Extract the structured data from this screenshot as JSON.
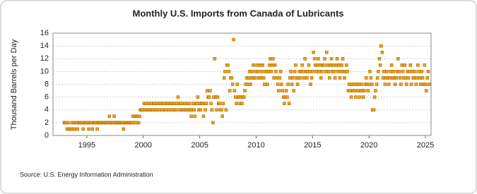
{
  "chart_data": {
    "type": "scatter",
    "title": "Monthly U.S. Imports from Canada of Lubricants",
    "y_label": "Thousand Barrels per Day",
    "source": "Source: U.S. Energy Information Administration",
    "color": "#e8a317",
    "grid": true,
    "xlim": [
      1992,
      2025.5
    ],
    "xticks": [
      1995,
      2000,
      2005,
      2010,
      2015,
      2020,
      2025
    ],
    "ylim": [
      0,
      16
    ],
    "yticks": [
      0,
      2,
      4,
      6,
      8,
      10,
      12,
      14,
      16
    ],
    "x": [
      1993,
      1993.08,
      1993.17,
      1993.25,
      1993.33,
      1993.42,
      1993.5,
      1993.58,
      1993.67,
      1993.75,
      1993.83,
      1993.92,
      1994,
      1994.08,
      1994.17,
      1994.25,
      1994.33,
      1994.42,
      1994.5,
      1994.58,
      1994.67,
      1994.75,
      1994.83,
      1994.92,
      1995,
      1995.08,
      1995.17,
      1995.25,
      1995.33,
      1995.42,
      1995.5,
      1995.58,
      1995.67,
      1995.75,
      1995.83,
      1995.92,
      1996,
      1996.08,
      1996.17,
      1996.25,
      1996.33,
      1996.42,
      1996.5,
      1996.58,
      1996.67,
      1996.75,
      1996.83,
      1996.92,
      1997,
      1997.08,
      1997.17,
      1997.25,
      1997.33,
      1997.42,
      1997.5,
      1997.58,
      1997.67,
      1997.75,
      1997.83,
      1997.92,
      1998,
      1998.08,
      1998.17,
      1998.25,
      1998.33,
      1998.42,
      1998.5,
      1998.58,
      1998.67,
      1998.75,
      1998.83,
      1998.92,
      1999,
      1999.08,
      1999.17,
      1999.25,
      1999.33,
      1999.42,
      1999.5,
      1999.58,
      1999.67,
      1999.75,
      1999.83,
      1999.92,
      2000,
      2000.08,
      2000.17,
      2000.25,
      2000.33,
      2000.42,
      2000.5,
      2000.58,
      2000.67,
      2000.75,
      2000.83,
      2000.92,
      2001,
      2001.08,
      2001.17,
      2001.25,
      2001.33,
      2001.42,
      2001.5,
      2001.58,
      2001.67,
      2001.75,
      2001.83,
      2001.92,
      2002,
      2002.08,
      2002.17,
      2002.25,
      2002.33,
      2002.42,
      2002.5,
      2002.58,
      2002.67,
      2002.75,
      2002.83,
      2002.92,
      2003,
      2003.08,
      2003.17,
      2003.25,
      2003.33,
      2003.42,
      2003.5,
      2003.58,
      2003.67,
      2003.75,
      2003.83,
      2003.92,
      2004,
      2004.08,
      2004.17,
      2004.25,
      2004.33,
      2004.42,
      2004.5,
      2004.58,
      2004.67,
      2004.75,
      2004.83,
      2004.92,
      2005,
      2005.08,
      2005.17,
      2005.25,
      2005.33,
      2005.42,
      2005.5,
      2005.58,
      2005.67,
      2005.75,
      2005.83,
      2005.92,
      2006,
      2006.08,
      2006.17,
      2006.25,
      2006.33,
      2006.42,
      2006.5,
      2006.58,
      2006.67,
      2006.75,
      2006.83,
      2006.92,
      2007,
      2007.08,
      2007.17,
      2007.25,
      2007.33,
      2007.42,
      2007.5,
      2007.58,
      2007.67,
      2007.75,
      2007.83,
      2007.92,
      2008,
      2008.08,
      2008.17,
      2008.25,
      2008.33,
      2008.42,
      2008.5,
      2008.58,
      2008.67,
      2008.75,
      2008.83,
      2008.92,
      2009,
      2009.08,
      2009.17,
      2009.25,
      2009.33,
      2009.42,
      2009.5,
      2009.58,
      2009.67,
      2009.75,
      2009.83,
      2009.92,
      2010,
      2010.08,
      2010.17,
      2010.25,
      2010.33,
      2010.42,
      2010.5,
      2010.58,
      2010.67,
      2010.75,
      2010.83,
      2010.92,
      2011,
      2011.08,
      2011.17,
      2011.25,
      2011.33,
      2011.42,
      2011.5,
      2011.58,
      2011.67,
      2011.75,
      2011.83,
      2011.92,
      2012,
      2012.08,
      2012.17,
      2012.25,
      2012.33,
      2012.42,
      2012.5,
      2012.58,
      2012.67,
      2012.75,
      2012.83,
      2012.92,
      2013,
      2013.08,
      2013.17,
      2013.25,
      2013.33,
      2013.42,
      2013.5,
      2013.58,
      2013.67,
      2013.75,
      2013.83,
      2013.92,
      2014,
      2014.08,
      2014.17,
      2014.25,
      2014.33,
      2014.42,
      2014.5,
      2014.58,
      2014.67,
      2014.75,
      2014.83,
      2014.92,
      2015,
      2015.08,
      2015.17,
      2015.25,
      2015.33,
      2015.42,
      2015.5,
      2015.58,
      2015.67,
      2015.75,
      2015.83,
      2015.92,
      2016,
      2016.08,
      2016.17,
      2016.25,
      2016.33,
      2016.42,
      2016.5,
      2016.58,
      2016.67,
      2016.75,
      2016.83,
      2016.92,
      2017,
      2017.08,
      2017.17,
      2017.25,
      2017.33,
      2017.42,
      2017.5,
      2017.58,
      2017.67,
      2017.75,
      2017.83,
      2017.92,
      2018,
      2018.08,
      2018.17,
      2018.25,
      2018.33,
      2018.42,
      2018.5,
      2018.58,
      2018.67,
      2018.75,
      2018.83,
      2018.92,
      2019,
      2019.08,
      2019.17,
      2019.25,
      2019.33,
      2019.42,
      2019.5,
      2019.58,
      2019.67,
      2019.75,
      2019.83,
      2019.92,
      2020,
      2020.08,
      2020.17,
      2020.25,
      2020.33,
      2020.42,
      2020.5,
      2020.58,
      2020.67,
      2020.75,
      2020.83,
      2020.92,
      2021,
      2021.08,
      2021.17,
      2021.25,
      2021.33,
      2021.42,
      2021.5,
      2021.58,
      2021.67,
      2021.75,
      2021.83,
      2021.92,
      2022,
      2022.08,
      2022.17,
      2022.25,
      2022.33,
      2022.42,
      2022.5,
      2022.58,
      2022.67,
      2022.75,
      2022.83,
      2022.92,
      2023,
      2023.08,
      2023.17,
      2023.25,
      2023.33,
      2023.42,
      2023.5,
      2023.58,
      2023.67,
      2023.75,
      2023.83,
      2023.92,
      2024,
      2024.08,
      2024.17,
      2024.25,
      2024.33,
      2024.42,
      2024.5,
      2024.58,
      2024.67,
      2024.75,
      2024.83,
      2024.92,
      2025,
      2025.08,
      2025.17,
      2025.25,
      2025.33
    ],
    "values": [
      2,
      2,
      2,
      1,
      2,
      1,
      1,
      1,
      2,
      1,
      2,
      1,
      2,
      2,
      1,
      2,
      2,
      2,
      2,
      2,
      1,
      2,
      2,
      2,
      2,
      2,
      1,
      2,
      2,
      2,
      1,
      2,
      2,
      2,
      2,
      1,
      2,
      2,
      2,
      2,
      2,
      2,
      2,
      2,
      2,
      2,
      2,
      2,
      3,
      2,
      2,
      2,
      2,
      3,
      2,
      2,
      2,
      2,
      2,
      2,
      2,
      2,
      2,
      1,
      2,
      2,
      2,
      2,
      2,
      2,
      2,
      2,
      2,
      3,
      2,
      3,
      2,
      3,
      3,
      2,
      3,
      4,
      4,
      4,
      4,
      5,
      4,
      5,
      4,
      4,
      5,
      4,
      5,
      4,
      4,
      5,
      5,
      4,
      5,
      4,
      5,
      4,
      5,
      5,
      4,
      5,
      5,
      4,
      4,
      5,
      5,
      4,
      5,
      5,
      4,
      5,
      5,
      4,
      5,
      4,
      5,
      6,
      5,
      4,
      5,
      4,
      5,
      4,
      5,
      4,
      4,
      5,
      4,
      5,
      4,
      3,
      4,
      5,
      4,
      3,
      5,
      5,
      6,
      4,
      5,
      4,
      5,
      5,
      3,
      5,
      4,
      5,
      7,
      6,
      6,
      7,
      5,
      4,
      2,
      6,
      12,
      6,
      4,
      6,
      5,
      5,
      4,
      4,
      3,
      5,
      9,
      10,
      4,
      11,
      11,
      10,
      7,
      9,
      9,
      8,
      15,
      7,
      6,
      5,
      8,
      6,
      6,
      5,
      6,
      5,
      6,
      6,
      7,
      8,
      9,
      8,
      9,
      10,
      8,
      9,
      10,
      11,
      9,
      9,
      10,
      11,
      10,
      9,
      11,
      9,
      10,
      11,
      9,
      8,
      10,
      10,
      8,
      10,
      11,
      12,
      10,
      11,
      12,
      9,
      11,
      10,
      9,
      8,
      7,
      9,
      10,
      8,
      7,
      6,
      5,
      6,
      7,
      6,
      8,
      5,
      9,
      10,
      8,
      9,
      7,
      10,
      11,
      9,
      8,
      9,
      10,
      9,
      10,
      11,
      10,
      9,
      12,
      10,
      9,
      10,
      11,
      10,
      8,
      9,
      10,
      13,
      12,
      11,
      10,
      11,
      12,
      10,
      11,
      9,
      10,
      11,
      11,
      12,
      10,
      13,
      11,
      10,
      9,
      11,
      12,
      10,
      11,
      10,
      9,
      11,
      12,
      10,
      11,
      9,
      10,
      11,
      12,
      10,
      9,
      10,
      11,
      10,
      7,
      8,
      7,
      6,
      8,
      7,
      8,
      7,
      6,
      8,
      7,
      8,
      6,
      7,
      8,
      7,
      6,
      7,
      8,
      9,
      8,
      7,
      8,
      10,
      9,
      8,
      4,
      4,
      6,
      7,
      8,
      9,
      10,
      12,
      11,
      14,
      13,
      9,
      10,
      8,
      9,
      10,
      9,
      8,
      9,
      10,
      11,
      9,
      10,
      9,
      8,
      9,
      10,
      12,
      10,
      9,
      8,
      11,
      10,
      9,
      11,
      9,
      8,
      10,
      9,
      10,
      11,
      8,
      10,
      9,
      9,
      10,
      8,
      9,
      11,
      10,
      9,
      8,
      10,
      9,
      8,
      11,
      8,
      7,
      9,
      10,
      8
    ]
  }
}
